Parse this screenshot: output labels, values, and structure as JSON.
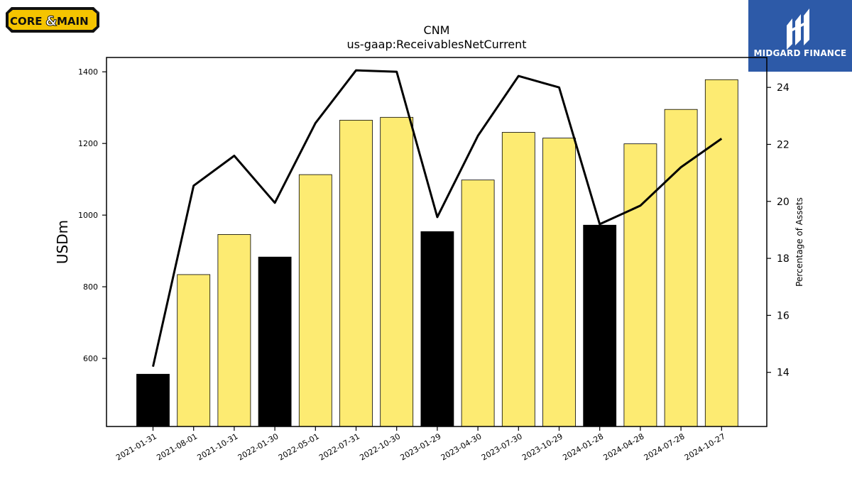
{
  "logos": {
    "left_brand": {
      "part1": "CORE",
      "amp": "&",
      "part2": "MAIN",
      "mark": "®"
    },
    "right_brand": {
      "text": "MIDGARD FINANCE"
    }
  },
  "colors": {
    "bar_fill": "#fdeb72",
    "bar_highlight": "#000000",
    "line": "#000000",
    "brand_yellow": "#f5c400",
    "brand_blue": "#2d5aa8"
  },
  "chart_data": {
    "type": "bar",
    "title": "CNM",
    "subtitle": "us-gaap:ReceivablesNetCurrent",
    "ylabel": "USDm",
    "y2label": "Percentage of Assets",
    "ylim": [
      410,
      1440
    ],
    "y2lim": [
      12.1,
      25.05
    ],
    "yticks": [
      600,
      800,
      1000,
      1200,
      1400
    ],
    "y2ticks": [
      14,
      16,
      18,
      20,
      22,
      24
    ],
    "grid": false,
    "categories": [
      "2021-01-31",
      "2021-08-01",
      "2021-10-31",
      "2022-01-30",
      "2022-05-01",
      "2022-07-31",
      "2022-10-30",
      "2023-01-29",
      "2023-04-30",
      "2023-07-30",
      "2023-10-29",
      "2024-01-28",
      "2024-04-28",
      "2024-07-28",
      "2024-10-27"
    ],
    "series": [
      {
        "type": "bar",
        "values": [
          556,
          834,
          946,
          883,
          1113,
          1265,
          1273,
          954,
          1098,
          1231,
          1215,
          972,
          1199,
          1295,
          1378
        ]
      },
      {
        "type": "line",
        "axis": "right",
        "values": [
          14.2,
          20.55,
          21.6,
          19.95,
          22.75,
          24.6,
          24.55,
          19.45,
          22.3,
          24.4,
          24.0,
          19.2,
          19.85,
          21.2,
          22.2
        ]
      }
    ],
    "highlighted_bars": [
      "2021-01-31",
      "2022-01-30",
      "2023-01-29",
      "2024-01-28"
    ]
  }
}
